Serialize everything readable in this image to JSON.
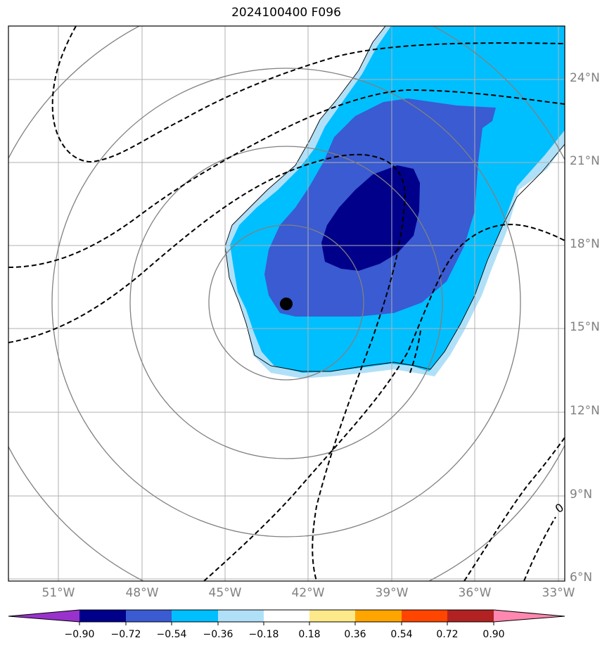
{
  "title": "2024100400 F096",
  "lat_labels": [
    "24°N",
    "21°N",
    "18°N",
    "15°N",
    "12°N",
    "9°N",
    "6°N"
  ],
  "lon_labels": [
    "51°W",
    "48°W",
    "45°W",
    "42°W",
    "39°W",
    "36°W",
    "33°W"
  ],
  "contour_label": "0",
  "colorbar": {
    "ticks": [
      "−0.90",
      "−0.72",
      "−0.54",
      "−0.36",
      "−0.18",
      "0.18",
      "0.36",
      "0.54",
      "0.72",
      "0.90"
    ],
    "colors": [
      "#9932cc",
      "#00008b",
      "#3a5bd1",
      "#00bfff",
      "#b0e0f8",
      "#ffffff",
      "#fde98a",
      "#ffa500",
      "#ff4500",
      "#b22222",
      "#ff87b0"
    ]
  },
  "fill_colors": {
    "level_036": "#00bfff",
    "level_054": "#3a5bd1",
    "level_072": "#00008b",
    "level_018": "#b0e0f8"
  },
  "storm_center": {
    "lat": 15.9,
    "lon": -42.8
  },
  "map_extent": {
    "lon_min": -53,
    "lon_max": -33,
    "lat_min": 6,
    "lat_max": 26
  }
}
